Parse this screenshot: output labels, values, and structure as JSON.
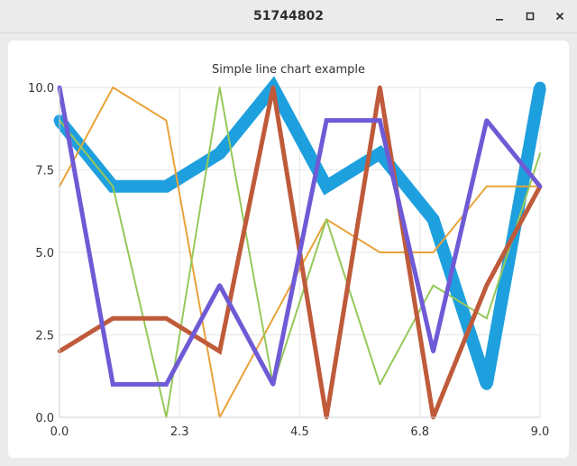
{
  "window": {
    "title": "51744802"
  },
  "chart_data": {
    "type": "line",
    "title": "Simple line chart example",
    "xlabel": "",
    "ylabel": "",
    "xlim": [
      0,
      9
    ],
    "ylim": [
      0,
      10
    ],
    "x_ticks": [
      "0.0",
      "2.3",
      "4.5",
      "6.8",
      "9.0"
    ],
    "y_ticks": [
      "0.0",
      "2.5",
      "5.0",
      "7.5",
      "10.0"
    ],
    "grid": true,
    "legend": "none",
    "x": [
      0,
      1,
      2,
      3,
      4,
      5,
      6,
      7,
      8,
      9
    ],
    "series": [
      {
        "color": "#1fa0de",
        "values": [
          9,
          7,
          7,
          8,
          10,
          7,
          8,
          6,
          1,
          10
        ]
      },
      {
        "color": "#e8a33a",
        "values": [
          7,
          10,
          9,
          0,
          3,
          6,
          5,
          5,
          7,
          7
        ]
      },
      {
        "color": "#96c85a",
        "values": [
          9,
          7,
          0,
          10,
          1,
          6,
          1,
          4,
          3,
          8
        ]
      },
      {
        "color": "#bf5a3a",
        "values": [
          2,
          3,
          3,
          2,
          10,
          0,
          10,
          0,
          4,
          7
        ]
      },
      {
        "color": "#6f5ad6",
        "values": [
          10,
          1,
          1,
          4,
          1,
          9,
          9,
          2,
          9,
          7
        ]
      }
    ]
  }
}
